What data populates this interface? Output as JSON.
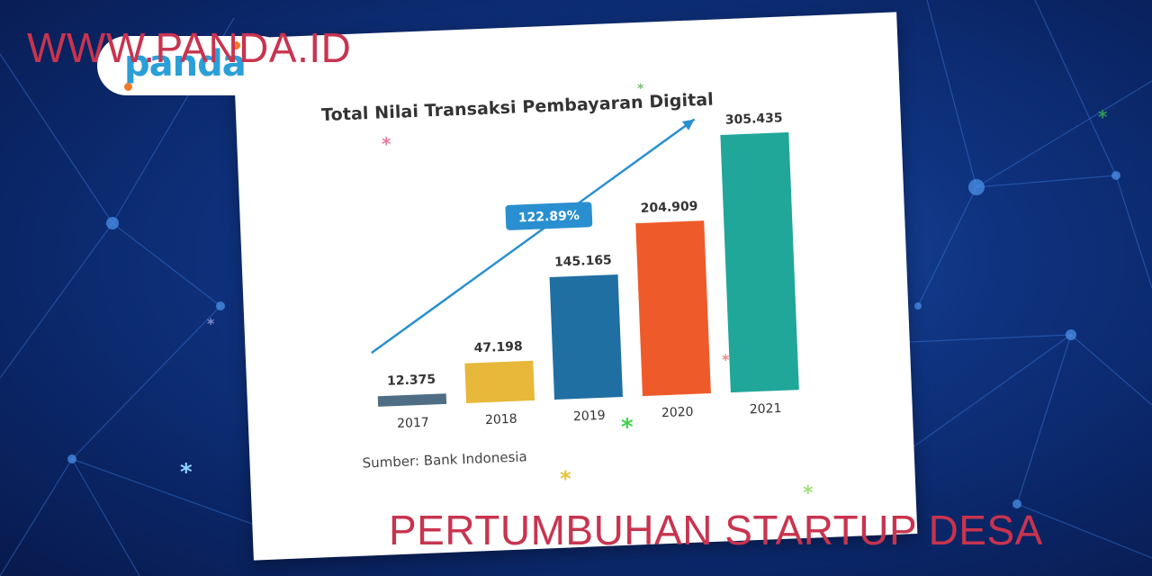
{
  "site_url": "WWW.PANDA.ID",
  "logo": {
    "text": "panda",
    "accent_color": "#f07a28",
    "text_color": "#2a9fd8"
  },
  "headline": "PERTUMBUHAN STARTUP DESA",
  "colors": {
    "background": "#0f3380",
    "overlay_text": "#c8344f"
  },
  "chart_data": {
    "type": "bar",
    "title": "Total Nilai Transaksi Pembayaran Digital",
    "categories": [
      "2017",
      "2018",
      "2019",
      "2020",
      "2021"
    ],
    "values": [
      12.375,
      47.198,
      145.165,
      204.909,
      305.435
    ],
    "value_labels": [
      "12.375",
      "47.198",
      "145.165",
      "204.909",
      "305.435"
    ],
    "bar_colors": [
      "#4f6e85",
      "#e8b83a",
      "#1f6fa3",
      "#ef5a2a",
      "#20a79a"
    ],
    "ylim": [
      0,
      320
    ],
    "growth_label": "122.89%",
    "growth_color": "#2a8fd0",
    "source": "Sumber: Bank Indonesia",
    "grid": false,
    "legend": "none"
  }
}
